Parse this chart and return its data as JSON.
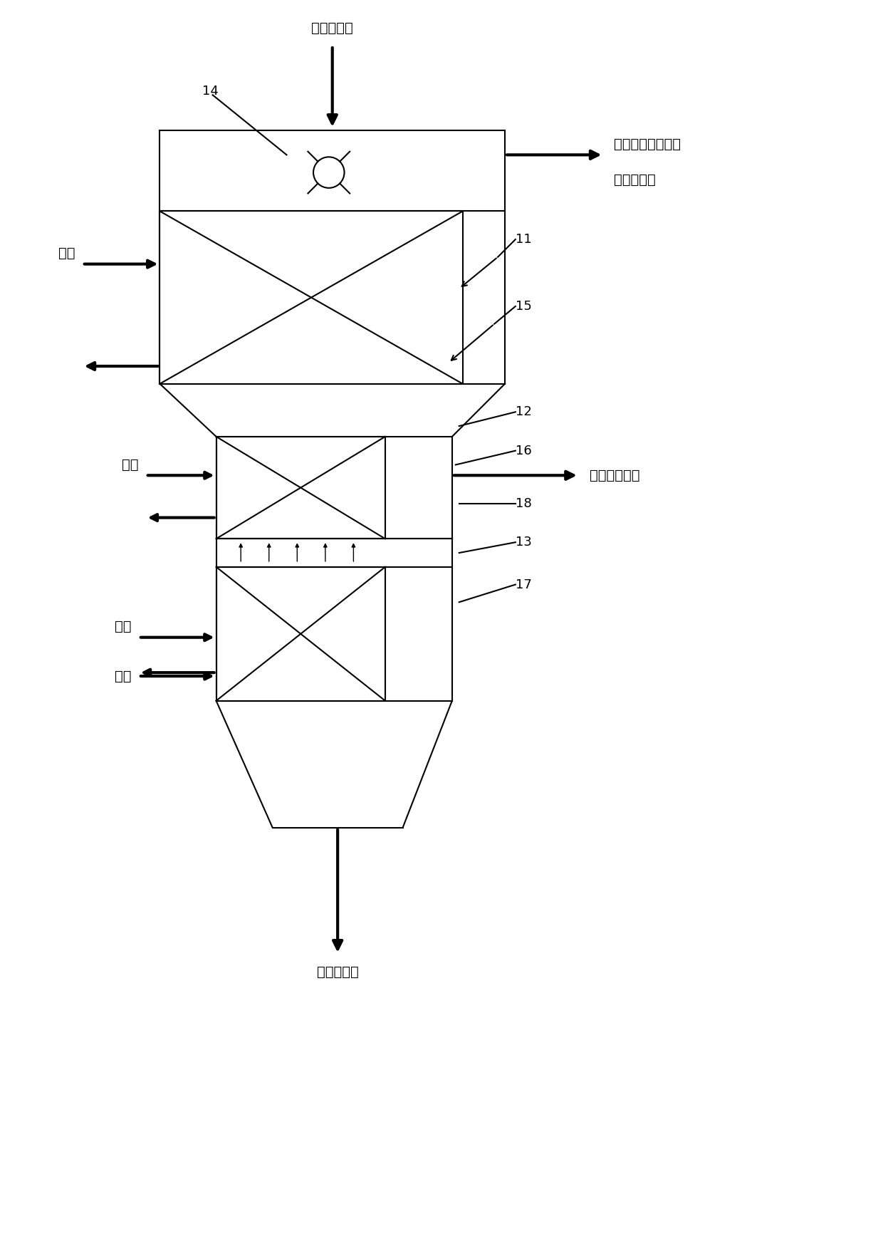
{
  "bg_color": "#ffffff",
  "line_color": "#000000",
  "fig_width": 12.4,
  "fig_height": 17.35,
  "title_text": "待干燥物料",
  "label_14": "14",
  "label_11": "11",
  "label_15": "15",
  "label_12": "12",
  "label_16": "16",
  "label_13": "13",
  "label_17": "17",
  "label_18": "18",
  "text_steam1": "蕊汽",
  "text_steam2": "蕊汽",
  "text_carrier": "载气",
  "text_steam3": "蕊汽",
  "text_fine1": "细颗粒物料及乏气",
  "text_fine2": "去气固分离",
  "text_medium": "中等颗粒物料",
  "text_large": "大颗粒物料"
}
